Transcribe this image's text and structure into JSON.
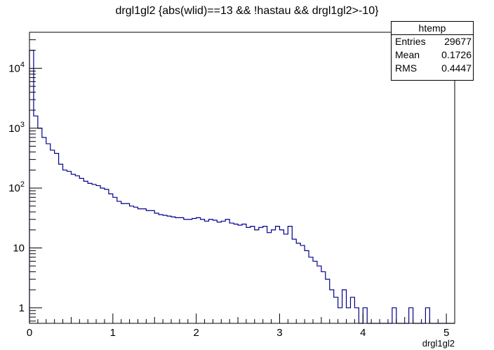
{
  "chart_data": {
    "type": "bar",
    "title": "drgl1gl2 {abs(wlid)==13 && !hastau && drgl1gl2>-10}",
    "xlabel": "drgl1gl2",
    "ylabel": "",
    "xlim": [
      0,
      5.1
    ],
    "ylim": [
      0.55,
      40000
    ],
    "y_scale": "log",
    "x_ticks": [
      "0",
      "1",
      "2",
      "3",
      "4",
      "5"
    ],
    "y_ticks": [
      {
        "value": 1,
        "label": "1"
      },
      {
        "value": 10,
        "label": "10"
      },
      {
        "value": 100,
        "label": "10^2"
      },
      {
        "value": 1000,
        "label": "10^3"
      },
      {
        "value": 10000,
        "label": "10^4"
      }
    ],
    "bin_width": 0.05,
    "series": [
      {
        "color": "#00008b",
        "values": [
          20000,
          1600,
          1000,
          700,
          550,
          430,
          380,
          250,
          200,
          190,
          170,
          160,
          145,
          130,
          120,
          115,
          110,
          100,
          95,
          80,
          70,
          60,
          55,
          55,
          50,
          48,
          45,
          45,
          42,
          42,
          38,
          36,
          35,
          34,
          33,
          32,
          32,
          30,
          30,
          31,
          32,
          30,
          28,
          30,
          29,
          27,
          28,
          30,
          26,
          25,
          24,
          25,
          22,
          23,
          20,
          22,
          23,
          18,
          20,
          23,
          20,
          17,
          23,
          14,
          12,
          11,
          9,
          7,
          6,
          5,
          4,
          3,
          2,
          1.5,
          1,
          2,
          1,
          1.5,
          1,
          0.5,
          1,
          0.5,
          0.5,
          0.5,
          0.5,
          0,
          0,
          1,
          0,
          0,
          0,
          1,
          0,
          0,
          0,
          1,
          0,
          0,
          0,
          0,
          0,
          0
        ]
      }
    ],
    "grid": false,
    "legend": "none"
  },
  "stats": {
    "name": "htemp",
    "rows": [
      {
        "label": "Entries",
        "value": "29677"
      },
      {
        "label": "Mean",
        "value": "0.1726"
      },
      {
        "label": "RMS",
        "value": "0.4447"
      }
    ]
  }
}
